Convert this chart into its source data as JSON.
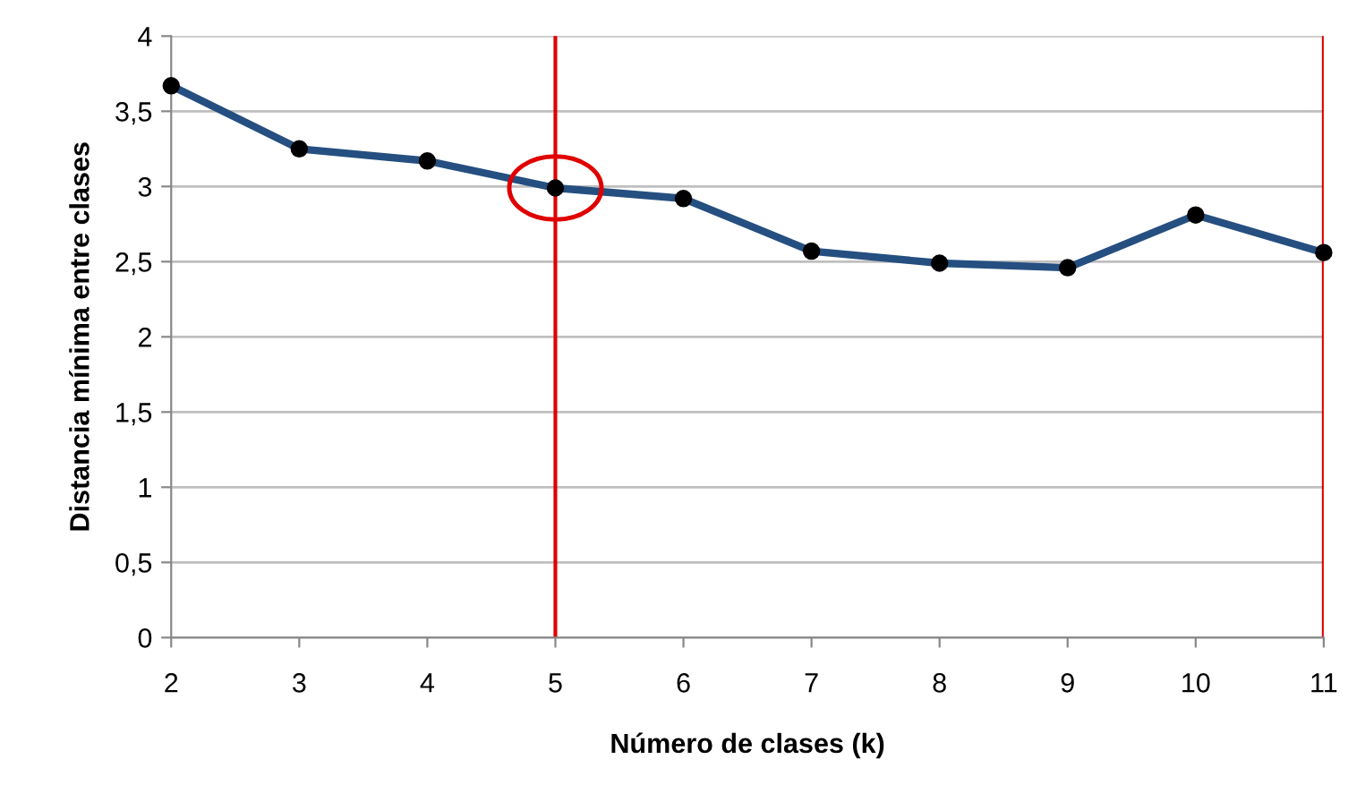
{
  "chart_data": {
    "type": "line",
    "xlabel": "Número de clases (k)",
    "ylabel": "Distancia mínima entre clases",
    "x": [
      2,
      3,
      4,
      5,
      6,
      7,
      8,
      9,
      10,
      11
    ],
    "series": [
      {
        "color": "#254f80",
        "values": [
          3.67,
          3.25,
          3.17,
          2.99,
          2.92,
          2.57,
          2.49,
          2.46,
          2.81,
          2.56
        ]
      }
    ],
    "xlim": [
      2,
      11
    ],
    "xticks": [
      2,
      3,
      4,
      5,
      6,
      7,
      8,
      9,
      10,
      11
    ],
    "ylim": [
      0,
      4
    ],
    "yticks": [
      0,
      {
        "value": 0.5,
        "label": "0,5"
      },
      1,
      {
        "value": 1.5,
        "label": "1,5"
      },
      2,
      {
        "value": 2.5,
        "label": "2,5"
      },
      3,
      {
        "value": 3.5,
        "label": "3,5"
      },
      4
    ],
    "grid": "y",
    "marker": "circle",
    "line_style": "solid",
    "ref_lines": [
      {
        "axis": "x",
        "value": 5,
        "color": "#e00000"
      },
      {
        "axis": "x",
        "value": 11,
        "color": "#e00000"
      }
    ]
  }
}
